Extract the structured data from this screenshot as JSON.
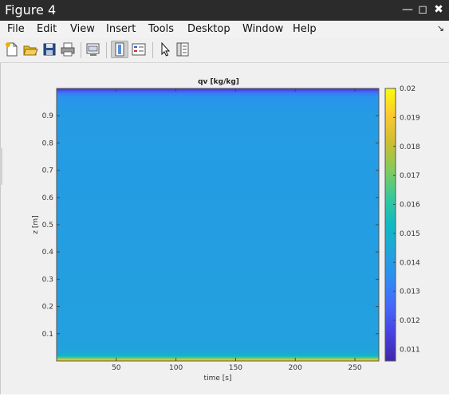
{
  "window": {
    "title": "Figure 4",
    "minimize_icon": "minimize-icon",
    "maximize_icon": "maximize-icon",
    "close_icon": "close-icon"
  },
  "menu": {
    "items": [
      {
        "label": "File"
      },
      {
        "label": "Edit"
      },
      {
        "label": "View"
      },
      {
        "label": "Insert"
      },
      {
        "label": "Tools"
      },
      {
        "label": "Desktop"
      },
      {
        "label": "Window"
      },
      {
        "label": "Help"
      }
    ],
    "dock_icon": "dock-arrow-icon"
  },
  "toolbar": {
    "buttons": [
      {
        "name": "new-figure-icon"
      },
      {
        "name": "open-file-icon"
      },
      {
        "name": "save-icon"
      },
      {
        "name": "print-icon"
      },
      {
        "name": "link-plot-icon"
      },
      {
        "name": "colorbar-icon",
        "active": true
      },
      {
        "name": "legend-icon"
      },
      {
        "name": "pointer-icon"
      },
      {
        "name": "property-editor-icon"
      }
    ]
  },
  "chart_data": {
    "type": "heatmap",
    "title": "qv [kg/kg]",
    "xlabel": "time [s]",
    "ylabel": "z [m]",
    "xlim": [
      0,
      270
    ],
    "ylim": [
      0,
      1
    ],
    "x_ticks": [
      50,
      100,
      150,
      200,
      250
    ],
    "y_ticks": [
      0.1,
      0.2,
      0.3,
      0.4,
      0.5,
      0.6,
      0.7,
      0.8,
      0.9
    ],
    "colorbar": {
      "range": [
        0.0106,
        0.02
      ],
      "ticks": [
        0.011,
        0.012,
        0.013,
        0.014,
        0.015,
        0.016,
        0.017,
        0.018,
        0.019,
        0.02
      ],
      "colormap": "parula"
    },
    "profile": {
      "z": [
        0.0,
        0.005,
        0.01,
        0.015,
        0.02,
        0.03,
        0.05,
        0.1,
        0.5,
        0.9,
        0.97,
        0.985,
        0.995,
        1.0
      ],
      "qv": [
        0.0195,
        0.0185,
        0.017,
        0.0158,
        0.015,
        0.0145,
        0.0143,
        0.0142,
        0.0141,
        0.014,
        0.0137,
        0.0128,
        0.0116,
        0.011
      ]
    }
  }
}
